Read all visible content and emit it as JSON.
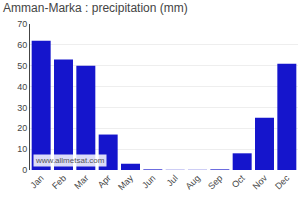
{
  "chart_data": {
    "type": "bar",
    "title": "Amman-Marka : precipitation (mm)",
    "categories": [
      "Jan",
      "Feb",
      "Mar",
      "Apr",
      "May",
      "Jun",
      "Jul",
      "Aug",
      "Sep",
      "Oct",
      "Nov",
      "Dec"
    ],
    "values": [
      62,
      53,
      50,
      17,
      3,
      0.3,
      0.1,
      0.1,
      0.3,
      8,
      25,
      51
    ],
    "color": "#1515cc",
    "ylim": [
      0,
      70
    ],
    "yticks": [
      0,
      10,
      20,
      30,
      40,
      50,
      60,
      70
    ],
    "grid": true,
    "annotations": [
      "www.allmetsat.com"
    ]
  }
}
